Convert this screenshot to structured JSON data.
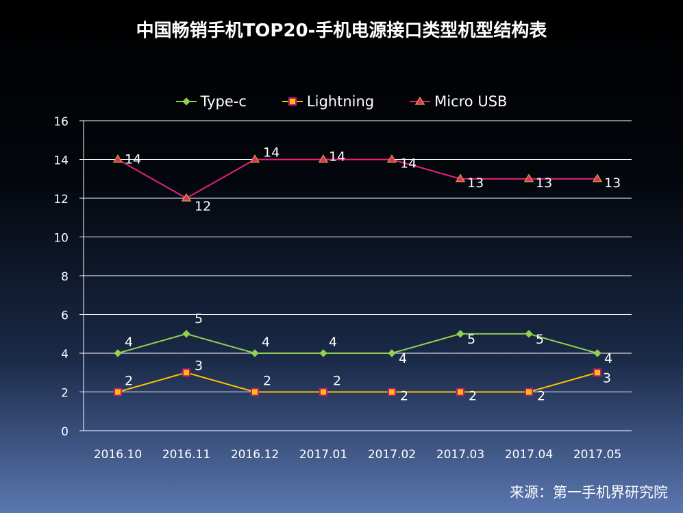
{
  "title": "中国畅销手机TOP20-手机电源接口类型机型结构表",
  "source": "来源：第一手机界研究院",
  "chart_data": {
    "type": "line",
    "title": "中国畅销手机TOP20-手机电源接口类型机型结构表",
    "categories": [
      "2016.10",
      "2016.11",
      "2016.12",
      "2017.01",
      "2017.02",
      "2017.03",
      "2017.04",
      "2017.05"
    ],
    "ylim": [
      0,
      16
    ],
    "yticks": [
      0,
      2,
      4,
      6,
      8,
      10,
      12,
      14,
      16
    ],
    "ytick_labels": [
      "0",
      "2",
      "4",
      "6",
      "8",
      "10",
      "12",
      "14",
      "16"
    ],
    "grid": true,
    "legend_position": "top",
    "series": [
      {
        "name": "Type-c",
        "values": [
          4,
          5,
          4,
          4,
          4,
          5,
          5,
          4
        ],
        "color": "#92d050",
        "marker": "diamond"
      },
      {
        "name": "Lightning",
        "values": [
          2,
          3,
          2,
          2,
          2,
          2,
          2,
          3
        ],
        "color": "#ffc000",
        "marker": "square"
      },
      {
        "name": "Micro USB",
        "values": [
          14,
          12,
          14,
          14,
          14,
          13,
          13,
          13
        ],
        "color": "#e6227b",
        "marker": "triangle"
      }
    ]
  }
}
